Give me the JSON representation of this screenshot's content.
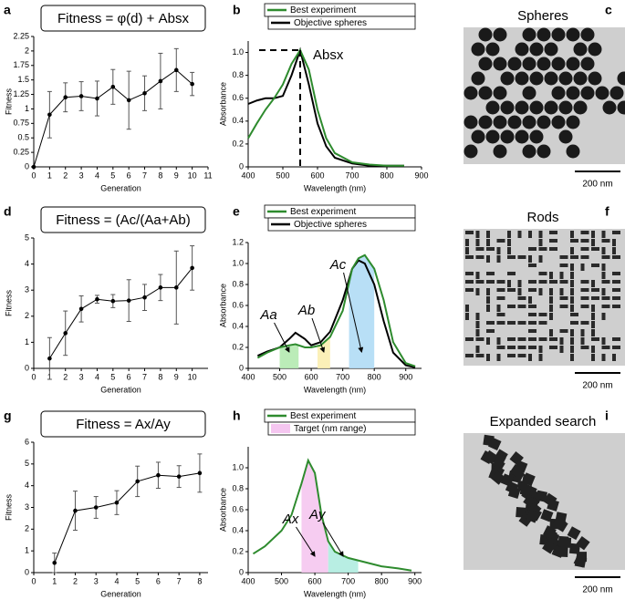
{
  "chart_data": [
    {
      "type": "line",
      "panel": "a",
      "title": "Fitness = φ(d) + Absx",
      "xlabel": "Generation",
      "ylabel": "Fitness",
      "x": [
        0,
        1,
        2,
        3,
        4,
        5,
        6,
        7,
        8,
        9,
        10
      ],
      "values": [
        0,
        0.9,
        1.2,
        1.22,
        1.18,
        1.38,
        1.15,
        1.27,
        1.48,
        1.67,
        1.43
      ],
      "errors": [
        0,
        0.4,
        0.25,
        0.25,
        0.3,
        0.3,
        0.5,
        0.3,
        0.48,
        0.37,
        0.2
      ],
      "color": "#000000",
      "xlim": [
        0,
        11
      ],
      "xticks": [
        0,
        1,
        2,
        3,
        4,
        5,
        6,
        7,
        8,
        9,
        10,
        11
      ],
      "ylim": [
        0,
        2.25
      ],
      "yticks": [
        0,
        0.25,
        0.5,
        0.75,
        1,
        1.25,
        1.5,
        1.75,
        2,
        2.25
      ]
    },
    {
      "type": "spectrum",
      "panel": "b",
      "xlabel": "Wavelength (nm)",
      "ylabel": "Absorbance",
      "annotation": "Absx",
      "x": [
        400,
        425,
        450,
        475,
        500,
        525,
        550,
        575,
        600,
        625,
        650,
        700,
        750,
        800,
        850
      ],
      "series": [
        {
          "name": "Best experiment",
          "color": "#2e8b2e",
          "values": [
            0.25,
            0.38,
            0.5,
            0.6,
            0.72,
            0.9,
            1.02,
            0.85,
            0.5,
            0.25,
            0.12,
            0.04,
            0.02,
            0.01,
            0.01
          ]
        },
        {
          "name": "Objective spheres",
          "color": "#000000",
          "values": [
            0.55,
            0.58,
            0.6,
            0.6,
            0.62,
            0.8,
            1.02,
            0.72,
            0.38,
            0.18,
            0.08,
            0.03,
            0.01,
            0.01,
            0.01
          ]
        }
      ],
      "xlim": [
        400,
        900
      ],
      "xticks": [
        400,
        500,
        600,
        700,
        800,
        900
      ],
      "ylim": [
        0,
        1.1
      ],
      "yticks": [
        0,
        0.2,
        0.4,
        0.6,
        0.8,
        {
          "value": 1,
          "label": "1.0"
        }
      ]
    },
    {
      "type": "image",
      "panel": "c",
      "title": "Spheres",
      "scale_bar": "200 nm",
      "particles": "spheres"
    },
    {
      "type": "line",
      "panel": "d",
      "title": "Fitness = (Ac/(Aa+Ab)",
      "xlabel": "Generation",
      "ylabel": "Fitness",
      "x": [
        1,
        2,
        3,
        4,
        5,
        6,
        7,
        8,
        9,
        10
      ],
      "values": [
        0.38,
        1.35,
        2.28,
        2.65,
        2.58,
        2.6,
        2.72,
        3.1,
        3.1,
        3.85
      ],
      "errors": [
        0.8,
        0.85,
        0.5,
        0.15,
        0.25,
        0.8,
        0.5,
        0.5,
        1.4,
        0.85
      ],
      "color": "#000000",
      "xlim": [
        0,
        11
      ],
      "xticks": [
        0,
        1,
        2,
        3,
        4,
        5,
        6,
        7,
        8,
        9,
        10
      ],
      "ylim": [
        0,
        5
      ],
      "yticks": [
        0,
        1,
        2,
        3,
        4,
        5
      ]
    },
    {
      "type": "spectrum",
      "panel": "e",
      "xlabel": "Wavelength (nm)",
      "ylabel": "Absorbance",
      "x": [
        430,
        460,
        500,
        530,
        550,
        580,
        600,
        630,
        660,
        700,
        730,
        750,
        770,
        800,
        830,
        860,
        900,
        930
      ],
      "series": [
        {
          "name": "Best experiment",
          "color": "#2e8b2e",
          "values": [
            0.1,
            0.15,
            0.2,
            0.22,
            0.23,
            0.2,
            0.2,
            0.22,
            0.3,
            0.55,
            0.95,
            1.05,
            1.08,
            0.95,
            0.65,
            0.25,
            0.05,
            0.02
          ]
        },
        {
          "name": "Objective spheres",
          "color": "#000000",
          "values": [
            0.12,
            0.16,
            0.2,
            0.28,
            0.34,
            0.28,
            0.22,
            0.25,
            0.35,
            0.65,
            0.95,
            1.03,
            1.0,
            0.8,
            0.45,
            0.15,
            0.03,
            0.01
          ]
        }
      ],
      "regions": [
        {
          "label": "Aa",
          "xlim": [
            500,
            560
          ],
          "color": "#b4eab0"
        },
        {
          "label": "Ab",
          "xlim": [
            620,
            660
          ],
          "color": "#fbeeb0"
        },
        {
          "label": "Ac",
          "xlim": [
            720,
            800
          ],
          "color": "#b0dcf5"
        }
      ],
      "xlim": [
        400,
        950
      ],
      "xticks": [
        400,
        500,
        600,
        700,
        800,
        900
      ],
      "ylim": [
        0,
        1.2
      ],
      "yticks": [
        0,
        0.2,
        0.4,
        0.6,
        0.8,
        {
          "value": 1,
          "label": "1.0"
        },
        {
          "value": 1.2,
          "label": "1.2"
        }
      ]
    },
    {
      "type": "image",
      "panel": "f",
      "title": "Rods",
      "scale_bar": "200 nm",
      "particles": "rods"
    },
    {
      "type": "line",
      "panel": "g",
      "title": "Fitness = Ax/Ay",
      "xlabel": "Generation",
      "ylabel": "Fitness",
      "x": [
        1,
        2,
        3,
        4,
        5,
        6,
        7,
        8
      ],
      "values": [
        0.45,
        2.85,
        3.0,
        3.22,
        4.2,
        4.48,
        4.42,
        4.58
      ],
      "errors": [
        0.45,
        0.9,
        0.5,
        0.55,
        0.7,
        0.6,
        0.5,
        0.88
      ],
      "color": "#000000",
      "xlim": [
        0,
        8.4
      ],
      "xticks": [
        0,
        1,
        2,
        3,
        4,
        5,
        6,
        7,
        8
      ],
      "ylim": [
        0,
        6
      ],
      "yticks": [
        0,
        1,
        2,
        3,
        4,
        5,
        6
      ]
    },
    {
      "type": "spectrum",
      "panel": "h",
      "xlabel": "Wavelength (nm)",
      "ylabel": "Absorbance",
      "legend_patch": {
        "name": "Target (nm range)",
        "color": "#f5c6f0"
      },
      "x": [
        415,
        450,
        500,
        530,
        560,
        580,
        600,
        620,
        640,
        660,
        700,
        750,
        800,
        850,
        890
      ],
      "series": [
        {
          "name": "Best experiment",
          "color": "#2e8b2e",
          "values": [
            0.18,
            0.25,
            0.4,
            0.55,
            0.85,
            1.07,
            0.95,
            0.55,
            0.3,
            0.2,
            0.14,
            0.1,
            0.06,
            0.04,
            0.02
          ]
        }
      ],
      "regions": [
        {
          "label": "Ax",
          "xlim": [
            560,
            640
          ],
          "color": "#f5c6f0"
        },
        {
          "label": "Ay",
          "xlim": [
            640,
            730
          ],
          "color": "#b0ece0"
        }
      ],
      "xlim": [
        400,
        920
      ],
      "xticks": [
        400,
        500,
        600,
        700,
        800,
        900
      ],
      "ylim": [
        0,
        1.2
      ],
      "yticks": [
        0,
        0.2,
        0.4,
        0.6,
        0.8,
        {
          "value": 1,
          "label": "1.0"
        }
      ]
    },
    {
      "type": "image",
      "panel": "i",
      "title": "Expanded search",
      "scale_bar": "200 nm",
      "particles": "cubes"
    }
  ]
}
